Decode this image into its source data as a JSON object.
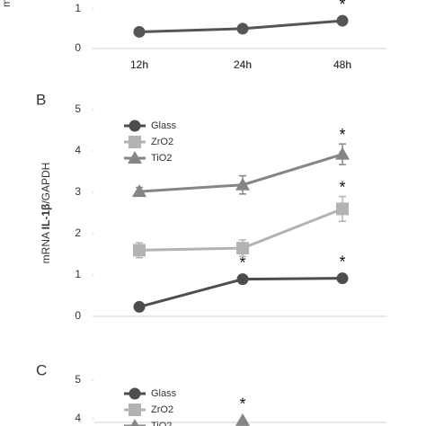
{
  "chart_data": [
    {
      "type": "line",
      "categories": [
        "12h",
        "24h",
        "48h"
      ],
      "series": [
        {
          "color": "#555555",
          "marker": "circle",
          "values": [
            0.42,
            0.5,
            0.7
          ],
          "marker_labels": [
            null,
            null,
            "*"
          ]
        }
      ],
      "ylim": [
        0,
        1.2
      ],
      "yticks": [
        0,
        1
      ],
      "y_label": "m"
    },
    {
      "type": "line",
      "panel": "B",
      "categories": [
        "12h",
        "24h",
        "48h"
      ],
      "series": [
        {
          "name": "Glass",
          "color": "#4d4d4d",
          "marker": "circle",
          "values": [
            0.23,
            0.9,
            0.92
          ],
          "marker_labels": [
            null,
            "*",
            "*"
          ]
        },
        {
          "name": "ZrO2",
          "color": "#b3b3b3",
          "marker": "square",
          "values": [
            1.6,
            1.65,
            2.6
          ],
          "errors": [
            0.18,
            0.2,
            0.3
          ],
          "marker_labels": [
            null,
            null,
            "*"
          ]
        },
        {
          "name": "TiO2",
          "color": "#858585",
          "marker": "triangle",
          "values": [
            3.02,
            3.18,
            3.92
          ],
          "errors": [
            0.1,
            0.22,
            0.25
          ],
          "marker_labels": [
            null,
            null,
            "*"
          ]
        }
      ],
      "ylim": [
        0,
        5
      ],
      "yticks": [
        0,
        1,
        2,
        3,
        4,
        5
      ],
      "y_label": [
        "mRNA ",
        "IL-1β",
        "/GAPDH"
      ]
    },
    {
      "type": "line",
      "panel": "C",
      "categories": [
        null,
        null,
        null
      ],
      "series": [
        {
          "name": "Glass",
          "color": "#4d4d4d",
          "marker": "circle",
          "values": [
            null,
            null,
            null
          ]
        },
        {
          "name": "ZrO2",
          "color": "#b3b3b3",
          "marker": "square",
          "values": [
            null,
            null,
            null
          ]
        },
        {
          "name": "TiO2",
          "color": "#858585",
          "marker": "triangle",
          "values": [
            null,
            3.95,
            null
          ],
          "marker_labels": [
            null,
            "*",
            null
          ]
        }
      ],
      "ylim": [
        3.9,
        5
      ],
      "yticks": [
        4,
        5
      ]
    }
  ]
}
